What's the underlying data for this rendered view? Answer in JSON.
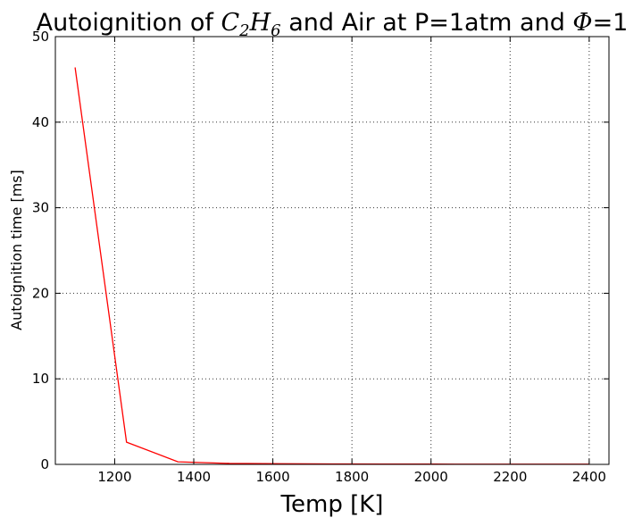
{
  "chart_data": {
    "type": "line",
    "title": {
      "prefix": "Autoignition of ",
      "species_base": "C",
      "species_sub1": "2",
      "species_mid": "H",
      "species_sub2": "6",
      "middle": " and Air at P=1atm and ",
      "phi": "Φ",
      "suffix": "=1"
    },
    "xlabel": "Temp [K]",
    "ylabel": "Autoignition time [ms]",
    "xlim": [
      1050,
      2450
    ],
    "ylim": [
      0,
      50
    ],
    "xticks": [
      1200,
      1400,
      1600,
      1800,
      2000,
      2200,
      2400
    ],
    "yticks": [
      0,
      10,
      20,
      30,
      40,
      50
    ],
    "grid": true,
    "series": [
      {
        "color": "#ff0000",
        "x": [
          1100,
          1230,
          1360,
          1490,
          1620,
          1750,
          1880,
          2010,
          2140,
          2270,
          2400
        ],
        "y": [
          46.4,
          2.6,
          0.3,
          0.12,
          0.07,
          0.05,
          0.04,
          0.03,
          0.02,
          0.02,
          0.02
        ]
      }
    ]
  }
}
